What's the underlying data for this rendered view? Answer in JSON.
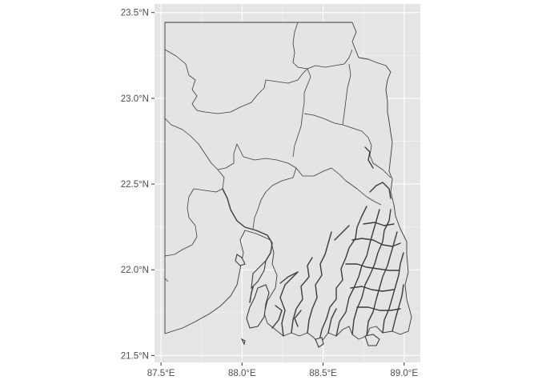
{
  "map": {
    "panel_background": "#e5e5e5",
    "outline_color": "#3c3c3c",
    "x_ticks": [
      {
        "value": 87.5,
        "label": "87.5°E"
      },
      {
        "value": 88.0,
        "label": "88.0°E"
      },
      {
        "value": 88.5,
        "label": "88.5°E"
      },
      {
        "value": 89.0,
        "label": "89.0°E"
      }
    ],
    "y_ticks": [
      {
        "value": 23.5,
        "label": "23.5°N"
      },
      {
        "value": 23.0,
        "label": "23.0°N"
      },
      {
        "value": 22.5,
        "label": "22.5°N"
      },
      {
        "value": 22.0,
        "label": "22.0°N"
      },
      {
        "value": 21.5,
        "label": "21.5°N"
      }
    ],
    "lon_range": [
      87.46,
      89.1
    ],
    "lat_range": [
      21.46,
      23.55
    ]
  }
}
